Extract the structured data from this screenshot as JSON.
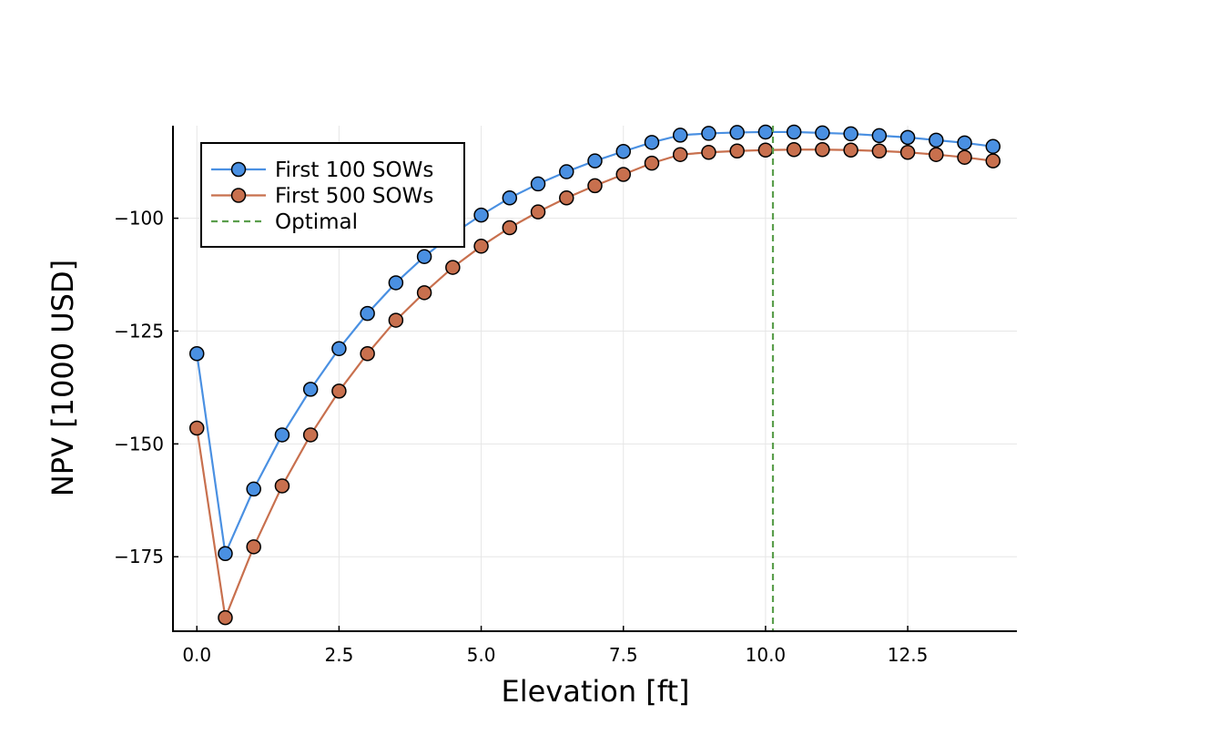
{
  "chart_data": {
    "type": "line",
    "title": "",
    "xlabel": "Elevation [ft]",
    "ylabel": "NPV [1000 USD]",
    "xlim": [
      -0.42,
      14.42
    ],
    "ylim": [
      -191.5,
      -79.5
    ],
    "x_ticks": [
      0.0,
      2.5,
      5.0,
      7.5,
      10.0,
      12.5
    ],
    "x_tick_labels": [
      "0.0",
      "2.5",
      "5.0",
      "7.5",
      "10.0",
      "12.5"
    ],
    "y_ticks": [
      -175,
      -150,
      -125,
      -100
    ],
    "y_tick_labels": [
      "−175",
      "−150",
      "−125",
      "−100"
    ],
    "grid": true,
    "legend_position": "top-left",
    "x": [
      0,
      0.5,
      1,
      1.5,
      2,
      2.5,
      3,
      3.5,
      4,
      4.5,
      5,
      5.5,
      6,
      6.5,
      7,
      7.5,
      8,
      8.5,
      9,
      9.5,
      10,
      10.5,
      11,
      11.5,
      12,
      12.5,
      13,
      13.5,
      14
    ],
    "series": [
      {
        "name": "First 100 SOWs",
        "color": "#4a90e2",
        "values": [
          -130.0,
          -174.3,
          -160.0,
          -148.0,
          -137.9,
          -128.9,
          -121.1,
          -114.3,
          -108.5,
          -103.5,
          -99.3,
          -95.5,
          -92.4,
          -89.7,
          -87.3,
          -85.2,
          -83.2,
          -81.6,
          -81.2,
          -81.0,
          -80.9,
          -80.9,
          -81.1,
          -81.3,
          -81.7,
          -82.1,
          -82.7,
          -83.3,
          -84.1
        ]
      },
      {
        "name": "First 500 SOWs",
        "color": "#c8704e",
        "values": [
          -146.5,
          -188.5,
          -172.8,
          -159.3,
          -148.0,
          -138.3,
          -130.0,
          -122.6,
          -116.5,
          -110.9,
          -106.2,
          -102.1,
          -98.6,
          -95.5,
          -92.8,
          -90.3,
          -87.8,
          -85.9,
          -85.4,
          -85.1,
          -84.9,
          -84.8,
          -84.8,
          -84.9,
          -85.1,
          -85.4,
          -85.9,
          -86.5,
          -87.3
        ]
      }
    ],
    "vlines": [
      {
        "name": "Optimal",
        "x": 10.13,
        "color": "#5a9e4c",
        "style": "dashed"
      }
    ]
  }
}
